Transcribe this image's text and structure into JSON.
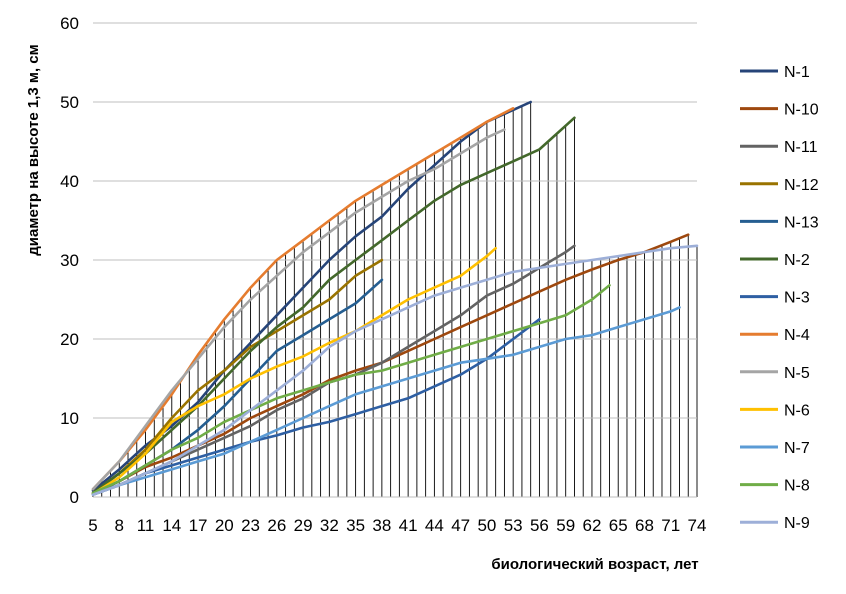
{
  "chart_data": {
    "type": "line",
    "title": "",
    "xlabel": "биологический возраст, лет",
    "ylabel": "диаметр на высоте 1,3 м, см",
    "xlim": [
      5,
      74
    ],
    "ylim": [
      0,
      60
    ],
    "y_ticks": [
      0,
      10,
      20,
      30,
      40,
      50,
      60
    ],
    "x_ticks": [
      5,
      8,
      11,
      14,
      17,
      20,
      23,
      26,
      29,
      32,
      35,
      38,
      41,
      44,
      47,
      50,
      53,
      56,
      59,
      62,
      65,
      68,
      71,
      74
    ],
    "grid": "horizontal major gridlines",
    "drop_lines": true,
    "legend_position": "right",
    "series": [
      {
        "name": "N-1",
        "color": "#264478",
        "points": [
          [
            5,
            0.8
          ],
          [
            8,
            3.5
          ],
          [
            11,
            6.5
          ],
          [
            14,
            9
          ],
          [
            17,
            12
          ],
          [
            20,
            16
          ],
          [
            23,
            19.5
          ],
          [
            26,
            23
          ],
          [
            29,
            26.5
          ],
          [
            32,
            30
          ],
          [
            35,
            33
          ],
          [
            38,
            35.5
          ],
          [
            41,
            39
          ],
          [
            44,
            42
          ],
          [
            47,
            45
          ],
          [
            50,
            47.5
          ],
          [
            53,
            49
          ],
          [
            55,
            50
          ]
        ]
      },
      {
        "name": "N-10",
        "color": "#9E480E",
        "points": [
          [
            5,
            0.4
          ],
          [
            8,
            2
          ],
          [
            11,
            3.8
          ],
          [
            14,
            5
          ],
          [
            17,
            6.5
          ],
          [
            20,
            8
          ],
          [
            23,
            10
          ],
          [
            26,
            11.5
          ],
          [
            29,
            13
          ],
          [
            32,
            14.8
          ],
          [
            35,
            16
          ],
          [
            38,
            17
          ],
          [
            41,
            18.5
          ],
          [
            44,
            20
          ],
          [
            47,
            21.5
          ],
          [
            50,
            23
          ],
          [
            53,
            24.5
          ],
          [
            56,
            26
          ],
          [
            59,
            27.5
          ],
          [
            62,
            28.8
          ],
          [
            65,
            30
          ],
          [
            68,
            31
          ],
          [
            71,
            32.3
          ],
          [
            73,
            33.2
          ]
        ]
      },
      {
        "name": "N-11",
        "color": "#636363",
        "points": [
          [
            5,
            0.3
          ],
          [
            8,
            1.5
          ],
          [
            11,
            3
          ],
          [
            14,
            4.5
          ],
          [
            17,
            6
          ],
          [
            20,
            7.5
          ],
          [
            23,
            9
          ],
          [
            26,
            11
          ],
          [
            29,
            12.5
          ],
          [
            32,
            14.5
          ],
          [
            35,
            15.5
          ],
          [
            38,
            17
          ],
          [
            41,
            19
          ],
          [
            44,
            21
          ],
          [
            47,
            23
          ],
          [
            50,
            25.5
          ],
          [
            53,
            27
          ],
          [
            56,
            29
          ],
          [
            59,
            31
          ],
          [
            60,
            31.8
          ]
        ]
      },
      {
        "name": "N-12",
        "color": "#997300",
        "points": [
          [
            5,
            0.5
          ],
          [
            8,
            3
          ],
          [
            11,
            6
          ],
          [
            14,
            10
          ],
          [
            17,
            13.5
          ],
          [
            20,
            16
          ],
          [
            23,
            19
          ],
          [
            26,
            21
          ],
          [
            29,
            23
          ],
          [
            32,
            25
          ],
          [
            35,
            28
          ],
          [
            38,
            30
          ]
        ]
      },
      {
        "name": "N-13",
        "color": "#255E91",
        "points": [
          [
            5,
            0.4
          ],
          [
            8,
            2
          ],
          [
            11,
            4
          ],
          [
            14,
            6
          ],
          [
            17,
            8.5
          ],
          [
            20,
            11.5
          ],
          [
            23,
            15
          ],
          [
            26,
            18.5
          ],
          [
            29,
            20.5
          ],
          [
            32,
            22.5
          ],
          [
            35,
            24.5
          ],
          [
            38,
            27.5
          ]
        ]
      },
      {
        "name": "N-2",
        "color": "#43682B",
        "points": [
          [
            5,
            0.5
          ],
          [
            8,
            3
          ],
          [
            11,
            5.5
          ],
          [
            14,
            8.5
          ],
          [
            17,
            11.5
          ],
          [
            20,
            15
          ],
          [
            23,
            18.5
          ],
          [
            26,
            21.5
          ],
          [
            29,
            24
          ],
          [
            32,
            27.5
          ],
          [
            35,
            30
          ],
          [
            38,
            32.5
          ],
          [
            41,
            35
          ],
          [
            44,
            37.5
          ],
          [
            47,
            39.5
          ],
          [
            50,
            41
          ],
          [
            53,
            42.5
          ],
          [
            56,
            44
          ],
          [
            59,
            47
          ],
          [
            60,
            48
          ]
        ]
      },
      {
        "name": "N-3",
        "color": "#2E5FA3",
        "points": [
          [
            5,
            0.3
          ],
          [
            8,
            1.5
          ],
          [
            11,
            3
          ],
          [
            14,
            4
          ],
          [
            17,
            5
          ],
          [
            20,
            6
          ],
          [
            23,
            7
          ],
          [
            26,
            7.8
          ],
          [
            29,
            8.8
          ],
          [
            32,
            9.5
          ],
          [
            35,
            10.5
          ],
          [
            38,
            11.5
          ],
          [
            41,
            12.5
          ],
          [
            44,
            14
          ],
          [
            47,
            15.5
          ],
          [
            50,
            17.5
          ],
          [
            53,
            20
          ],
          [
            56,
            22.5
          ]
        ]
      },
      {
        "name": "N-4",
        "color": "#E57C2F",
        "points": [
          [
            5,
            1
          ],
          [
            8,
            4.5
          ],
          [
            11,
            8.5
          ],
          [
            14,
            13
          ],
          [
            17,
            18
          ],
          [
            20,
            22.5
          ],
          [
            23,
            26.5
          ],
          [
            26,
            30
          ],
          [
            29,
            32.5
          ],
          [
            32,
            35
          ],
          [
            35,
            37.5
          ],
          [
            38,
            39.5
          ],
          [
            41,
            41.5
          ],
          [
            44,
            43.5
          ],
          [
            47,
            45.5
          ],
          [
            50,
            47.5
          ],
          [
            53,
            49.2
          ]
        ]
      },
      {
        "name": "N-5",
        "color": "#A5A5A5",
        "points": [
          [
            5,
            1
          ],
          [
            8,
            4.5
          ],
          [
            11,
            9
          ],
          [
            14,
            13.5
          ],
          [
            17,
            17.5
          ],
          [
            20,
            21.5
          ],
          [
            23,
            25
          ],
          [
            26,
            28
          ],
          [
            29,
            31
          ],
          [
            32,
            33.5
          ],
          [
            35,
            36
          ],
          [
            38,
            38
          ],
          [
            41,
            40
          ],
          [
            44,
            41.5
          ],
          [
            47,
            43.5
          ],
          [
            50,
            45.5
          ],
          [
            52,
            46.5
          ]
        ]
      },
      {
        "name": "N-6",
        "color": "#FFC000",
        "points": [
          [
            5,
            0.4
          ],
          [
            8,
            2.5
          ],
          [
            11,
            5.5
          ],
          [
            14,
            9.5
          ],
          [
            17,
            11.5
          ],
          [
            20,
            13
          ],
          [
            23,
            15
          ],
          [
            26,
            16.5
          ],
          [
            29,
            17.8
          ],
          [
            32,
            19.5
          ],
          [
            35,
            21
          ],
          [
            38,
            23
          ],
          [
            41,
            25
          ],
          [
            44,
            26.5
          ],
          [
            47,
            28
          ],
          [
            50,
            30.5
          ],
          [
            51,
            31.5
          ]
        ]
      },
      {
        "name": "N-7",
        "color": "#5B9BD5",
        "points": [
          [
            5,
            0.3
          ],
          [
            8,
            1.5
          ],
          [
            11,
            2.5
          ],
          [
            14,
            3.5
          ],
          [
            17,
            4.5
          ],
          [
            20,
            5.5
          ],
          [
            23,
            7
          ],
          [
            26,
            8.5
          ],
          [
            29,
            10
          ],
          [
            32,
            11.5
          ],
          [
            35,
            13
          ],
          [
            38,
            14
          ],
          [
            41,
            15
          ],
          [
            44,
            16
          ],
          [
            47,
            17
          ],
          [
            50,
            17.5
          ],
          [
            53,
            18
          ],
          [
            56,
            19
          ],
          [
            59,
            20
          ],
          [
            62,
            20.5
          ],
          [
            65,
            21.5
          ],
          [
            68,
            22.5
          ],
          [
            71,
            23.5
          ],
          [
            72,
            24
          ]
        ]
      },
      {
        "name": "N-8",
        "color": "#70AD47",
        "points": [
          [
            5,
            0.5
          ],
          [
            8,
            2
          ],
          [
            11,
            4
          ],
          [
            14,
            6
          ],
          [
            17,
            7.5
          ],
          [
            20,
            9.5
          ],
          [
            23,
            11
          ],
          [
            26,
            12.5
          ],
          [
            29,
            13.5
          ],
          [
            32,
            14.5
          ],
          [
            35,
            15.5
          ],
          [
            38,
            16
          ],
          [
            41,
            17
          ],
          [
            44,
            18
          ],
          [
            47,
            19
          ],
          [
            50,
            20
          ],
          [
            53,
            21
          ],
          [
            56,
            22
          ],
          [
            59,
            23
          ],
          [
            62,
            25
          ],
          [
            64,
            26.8
          ]
        ]
      },
      {
        "name": "N-9",
        "color": "#9DAFD8",
        "points": [
          [
            5,
            0.3
          ],
          [
            8,
            1.5
          ],
          [
            11,
            3
          ],
          [
            14,
            4.5
          ],
          [
            17,
            6.5
          ],
          [
            20,
            8.5
          ],
          [
            23,
            11
          ],
          [
            26,
            13.5
          ],
          [
            29,
            16
          ],
          [
            32,
            19
          ],
          [
            35,
            21
          ],
          [
            38,
            22.5
          ],
          [
            41,
            24
          ],
          [
            44,
            25.5
          ],
          [
            47,
            26.5
          ],
          [
            50,
            27.5
          ],
          [
            53,
            28.5
          ],
          [
            56,
            29
          ],
          [
            59,
            29.5
          ],
          [
            62,
            30
          ],
          [
            65,
            30.5
          ],
          [
            68,
            31
          ],
          [
            71,
            31.5
          ],
          [
            74,
            31.8
          ]
        ]
      }
    ]
  }
}
